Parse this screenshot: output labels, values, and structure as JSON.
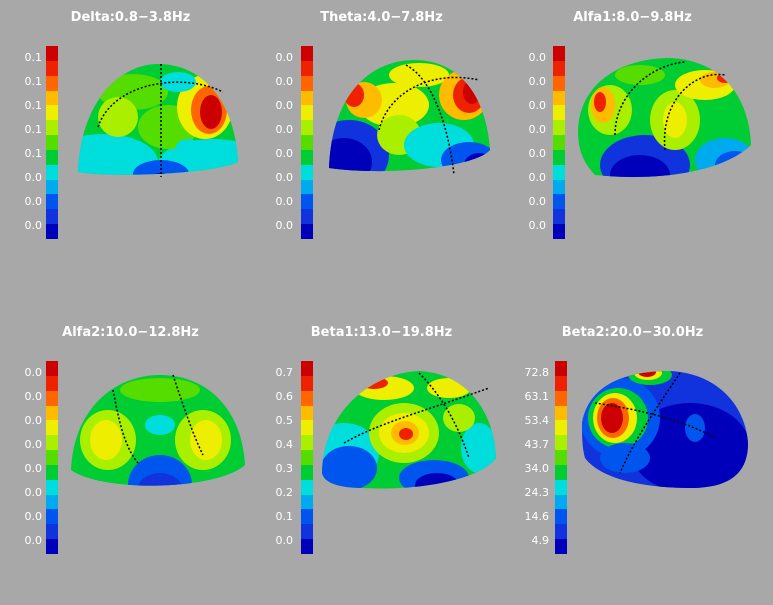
{
  "colormap": [
    "#cc0000",
    "#ee2200",
    "#ff6600",
    "#ffbb00",
    "#eeee00",
    "#aaee00",
    "#55dd00",
    "#00cc33",
    "#00dddd",
    "#00aaee",
    "#0055ee",
    "#1133dd",
    "#0000bb"
  ],
  "panels": [
    {
      "title": "Delta:0.8−3.8Hz",
      "ticks": [
        "0.1",
        "0.1",
        "0.1",
        "0.1",
        "0.1",
        "0.0",
        "0.0",
        "0.0"
      ]
    },
    {
      "title": "Theta:4.0−7.8Hz",
      "ticks": [
        "0.0",
        "0.0",
        "0.0",
        "0.0",
        "0.0",
        "0.0",
        "0.0",
        "0.0"
      ]
    },
    {
      "title": "Alfa1:8.0−9.8Hz",
      "ticks": [
        "0.0",
        "0.0",
        "0.0",
        "0.0",
        "0.0",
        "0.0",
        "0.0",
        "0.0"
      ]
    },
    {
      "title": "Alfa2:10.0−12.8Hz",
      "ticks": [
        "0.0",
        "0.0",
        "0.0",
        "0.0",
        "0.0",
        "0.0",
        "0.0",
        "0.0"
      ]
    },
    {
      "title": "Beta1:13.0−19.8Hz",
      "ticks": [
        "0.7",
        "0.6",
        "0.5",
        "0.4",
        "0.3",
        "0.2",
        "0.1",
        "0.0"
      ]
    },
    {
      "title": "Beta2:20.0−30.0Hz",
      "ticks": [
        "72.8",
        "63.1",
        "53.4",
        "43.7",
        "34.0",
        "24.3",
        "14.6",
        "4.9"
      ]
    }
  ]
}
